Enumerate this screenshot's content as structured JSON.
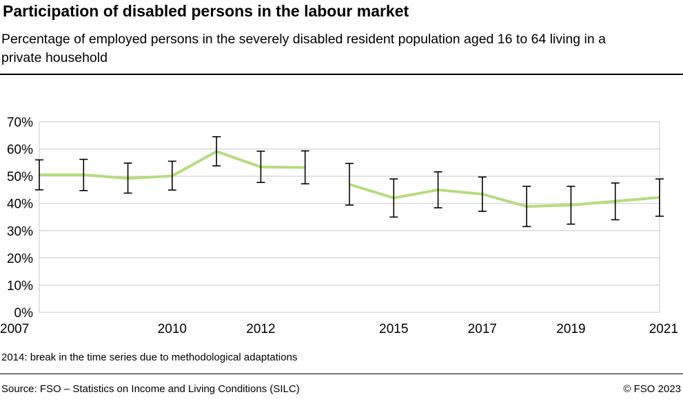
{
  "header": {
    "title": "Participation of disabled persons in the labour market",
    "subtitle": "Percentage of employed persons in the severely disabled resident population aged 16 to 64 living in a private household"
  },
  "footer": {
    "note": "2014: break in the time series due to methodological adaptations",
    "source": "Source: FSO – Statistics on Income and Living Conditions (SILC)",
    "copyright": "© FSO 2023"
  },
  "colors": {
    "line": "#b5dc7e",
    "error_bar": "#000000",
    "grid": "#c8c8c8"
  },
  "chart_data": {
    "type": "line",
    "x": [
      2007,
      2008,
      2009,
      2010,
      2011,
      2012,
      2013,
      2014,
      2015,
      2016,
      2017,
      2018,
      2019,
      2020,
      2021
    ],
    "xticks": [
      2007,
      2010,
      2012,
      2015,
      2017,
      2019,
      2021
    ],
    "xlim": [
      2007,
      2021
    ],
    "yticks": [
      "0%",
      "10%",
      "20%",
      "30%",
      "40%",
      "50%",
      "60%",
      "70%"
    ],
    "ylim": [
      0,
      70
    ],
    "grid": true,
    "series": [
      {
        "values": [
          50.5,
          50.5,
          49.2,
          50.1,
          59.1,
          53.4,
          53.2,
          47.0,
          42.0,
          45.0,
          43.4,
          38.9,
          39.4,
          40.8,
          42.2
        ],
        "error_low": [
          45.0,
          44.7,
          43.8,
          44.9,
          53.8,
          47.7,
          47.2,
          39.4,
          35.0,
          38.4,
          37.1,
          31.5,
          32.4,
          34.0,
          35.3
        ],
        "error_high": [
          56.0,
          56.2,
          54.8,
          55.5,
          64.5,
          59.2,
          59.3,
          54.7,
          49.0,
          51.6,
          49.7,
          46.3,
          46.3,
          47.5,
          49.0
        ],
        "segments": [
          [
            2007,
            2013
          ],
          [
            2014,
            2021
          ]
        ]
      }
    ]
  }
}
